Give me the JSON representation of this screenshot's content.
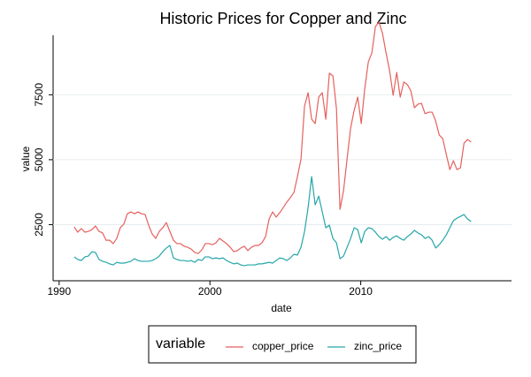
{
  "chart_data": {
    "type": "line",
    "title": "Historic Prices for Copper and Zinc",
    "x_label": "date",
    "y_label": "value",
    "xlim": [
      1989.6,
      2020
    ],
    "xticks": [
      1990,
      2000,
      2010
    ],
    "ylim": [
      340,
      10400
    ],
    "yticks": [
      2500,
      5000,
      7500
    ],
    "grid": true,
    "legend_title": "variable",
    "legend_position": "bottom",
    "x": [
      1991.0,
      1991.235,
      1991.47,
      1991.705,
      1991.94,
      1992.175,
      1992.41,
      1992.645,
      1992.88,
      1993.115,
      1993.35,
      1993.585,
      1993.82,
      1994.055,
      1994.29,
      1994.525,
      1994.76,
      1994.995,
      1995.23,
      1995.465,
      1995.7,
      1995.935,
      1996.17,
      1996.405,
      1996.64,
      1996.875,
      1997.11,
      1997.345,
      1997.58,
      1997.815,
      1998.05,
      1998.285,
      1998.52,
      1998.755,
      1998.99,
      1999.225,
      1999.46,
      1999.695,
      1999.93,
      2000.165,
      2000.4,
      2000.635,
      2000.87,
      2001.105,
      2001.34,
      2001.575,
      2001.81,
      2002.045,
      2002.28,
      2002.515,
      2002.75,
      2002.985,
      2003.22,
      2003.455,
      2003.69,
      2003.925,
      2004.16,
      2004.395,
      2004.63,
      2004.865,
      2005.1,
      2005.335,
      2005.57,
      2005.805,
      2006.04,
      2006.275,
      2006.51,
      2006.745,
      2006.98,
      2007.215,
      2007.45,
      2007.685,
      2007.92,
      2008.155,
      2008.39,
      2008.625,
      2008.86,
      2009.095,
      2009.33,
      2009.565,
      2009.8,
      2010.035,
      2010.27,
      2010.505,
      2010.74,
      2010.975,
      2011.21,
      2011.445,
      2011.68,
      2011.915,
      2012.15,
      2012.385,
      2012.62,
      2012.855,
      2013.09,
      2013.325,
      2013.56,
      2013.795,
      2014.03,
      2014.265,
      2014.5,
      2014.735,
      2014.97,
      2015.205,
      2015.44,
      2015.675,
      2015.91,
      2016.145,
      2016.38,
      2016.615,
      2016.85,
      2017.085,
      2017.32
    ],
    "series": [
      {
        "name": "copper_price",
        "color": "#e5615d",
        "values": [
          2410,
          2210,
          2350,
          2210,
          2240,
          2310,
          2450,
          2240,
          2180,
          1900,
          1900,
          1770,
          1970,
          2380,
          2520,
          2920,
          2990,
          2920,
          2990,
          2920,
          2890,
          2480,
          2140,
          1970,
          2240,
          2380,
          2580,
          2240,
          1900,
          1770,
          1770,
          1670,
          1630,
          1560,
          1430,
          1390,
          1530,
          1770,
          1770,
          1730,
          1800,
          1970,
          1870,
          1770,
          1630,
          1460,
          1500,
          1600,
          1670,
          1500,
          1630,
          1700,
          1700,
          1800,
          2040,
          2720,
          2990,
          2790,
          2960,
          3160,
          3370,
          3540,
          3740,
          4350,
          5030,
          7070,
          7580,
          6560,
          6390,
          7410,
          7580,
          6560,
          8330,
          8230,
          6970,
          3090,
          3810,
          5030,
          6220,
          6900,
          7410,
          6390,
          7750,
          8770,
          9110,
          10130,
          10300,
          9860,
          9110,
          8430,
          7480,
          8360,
          7410,
          7990,
          7890,
          7650,
          7000,
          7140,
          7170,
          6770,
          6830,
          6830,
          6490,
          5950,
          5810,
          5200,
          4620,
          4960,
          4620,
          4690,
          5640,
          5780,
          5680
        ]
      },
      {
        "name": "zinc_price",
        "color": "#26a6a9",
        "values": [
          1260,
          1160,
          1120,
          1260,
          1290,
          1460,
          1430,
          1160,
          1090,
          1050,
          990,
          950,
          1050,
          1020,
          1020,
          1050,
          1090,
          1190,
          1120,
          1090,
          1090,
          1090,
          1120,
          1190,
          1290,
          1460,
          1600,
          1700,
          1220,
          1160,
          1120,
          1120,
          1090,
          1120,
          1050,
          1160,
          1120,
          1260,
          1260,
          1190,
          1220,
          1190,
          1220,
          1120,
          1050,
          990,
          1020,
          950,
          920,
          950,
          950,
          950,
          990,
          990,
          1020,
          1050,
          1020,
          1120,
          1220,
          1190,
          1120,
          1220,
          1360,
          1330,
          1630,
          2240,
          3160,
          4350,
          3260,
          3600,
          2990,
          2380,
          2480,
          1970,
          1800,
          1190,
          1290,
          1630,
          1970,
          2380,
          2310,
          1800,
          2240,
          2380,
          2350,
          2210,
          2040,
          1940,
          2040,
          1900,
          2010,
          2070,
          1970,
          1900,
          2040,
          2140,
          2280,
          2180,
          2110,
          1970,
          2040,
          1900,
          1600,
          1730,
          1900,
          2110,
          2380,
          2650,
          2750,
          2820,
          2890,
          2720,
          2620
        ]
      }
    ]
  }
}
